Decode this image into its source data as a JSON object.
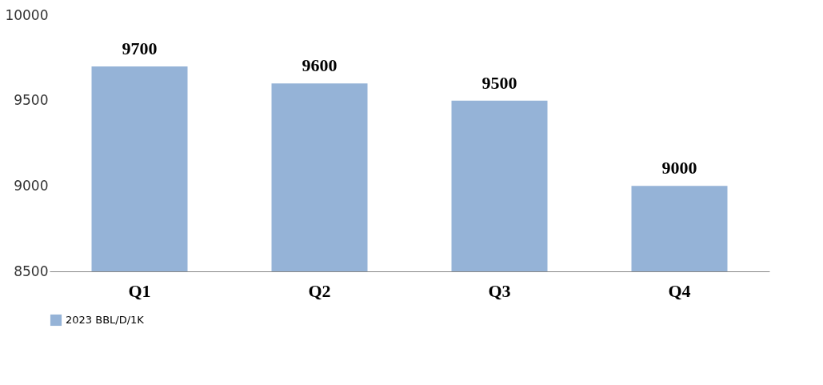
{
  "chart_data": {
    "type": "bar",
    "categories": [
      "Q1",
      "Q2",
      "Q3",
      "Q4"
    ],
    "series": [
      {
        "name": "2023 BBL/D/1K",
        "color": "#95b3d7",
        "values": [
          9700,
          9600,
          9500,
          9000
        ]
      }
    ],
    "ylim": [
      8500,
      10000
    ],
    "yticks": [
      8500,
      9000,
      9500,
      10000
    ],
    "grid": false,
    "legend": "bottom",
    "data_labels": true
  }
}
